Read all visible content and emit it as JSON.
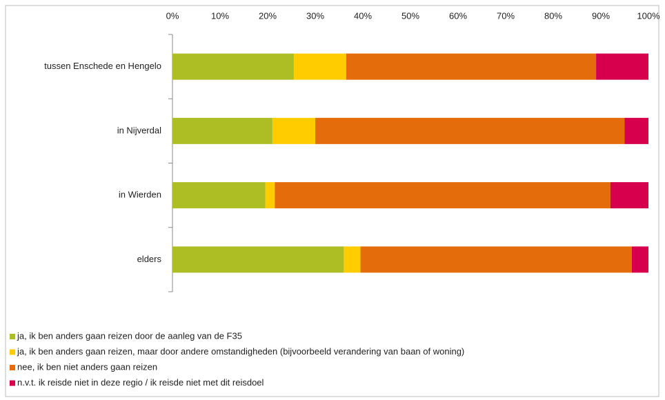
{
  "chart_data": {
    "type": "stacked-bar-horizontal",
    "categories": [
      "tussen Enschede en Hengelo",
      "in Nijverdal",
      "in Wierden",
      "elders"
    ],
    "series": [
      {
        "name": "ja, ik ben anders gaan reizen door de aanleg van de F35",
        "color": "#adbe25",
        "values": [
          25.5,
          21,
          19.5,
          36
        ]
      },
      {
        "name": "ja, ik ben anders gaan reizen, maar door andere omstandigheden (bijvoorbeeld verandering van baan of woning)",
        "color": "#ffcc00",
        "values": [
          11,
          9,
          2,
          3.5
        ]
      },
      {
        "name": "nee, ik ben niet anders gaan reizen",
        "color": "#e46c0a",
        "values": [
          52.5,
          65,
          70.5,
          57
        ]
      },
      {
        "name": "n.v.t. ik reisde niet in deze regio / ik reisde niet met dit reisdoel",
        "color": "#d6004c",
        "values": [
          11,
          5,
          8,
          3.5
        ]
      }
    ],
    "xlim": [
      0,
      100
    ],
    "xticks": [
      {
        "value": 0,
        "label": "0%"
      },
      {
        "value": 10,
        "label": "10%"
      },
      {
        "value": 20,
        "label": "20%"
      },
      {
        "value": 30,
        "label": "30%"
      },
      {
        "value": 40,
        "label": "40%"
      },
      {
        "value": 50,
        "label": "50%"
      },
      {
        "value": 60,
        "label": "60%"
      },
      {
        "value": 70,
        "label": "70%"
      },
      {
        "value": 80,
        "label": "80%"
      },
      {
        "value": 90,
        "label": "90%"
      },
      {
        "value": 100,
        "label": "100%"
      }
    ],
    "legend": "bottom-left"
  }
}
